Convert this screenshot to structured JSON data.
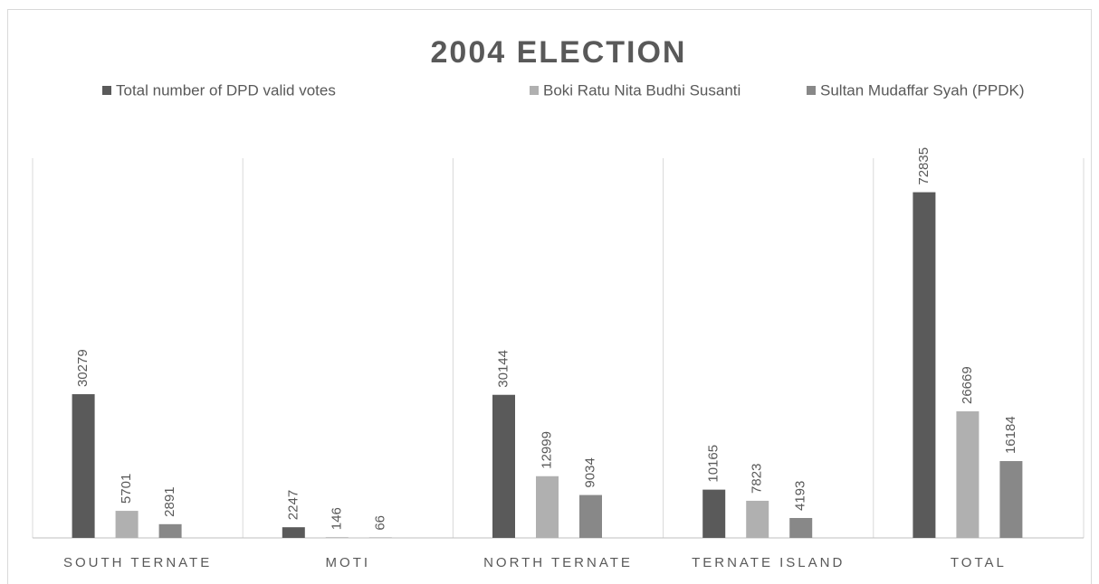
{
  "chart_data": {
    "type": "bar",
    "title": "2004 ELECTION",
    "categories": [
      "SOUTH TERNATE",
      "MOTI",
      "NORTH TERNATE",
      "TERNATE ISLAND",
      "TOTAL"
    ],
    "series": [
      {
        "name": "Total number of DPD valid votes",
        "color": "#5a5a5a",
        "values": [
          30279,
          2247,
          30144,
          10165,
          72835
        ]
      },
      {
        "name": "Boki Ratu Nita Budhi Susanti",
        "color": "#b0b0b0",
        "values": [
          5701,
          146,
          12999,
          7823,
          26669
        ]
      },
      {
        "name": "Sultan Mudaffar Syah (PPDK)",
        "color": "#888888",
        "values": [
          2891,
          66,
          9034,
          4193,
          16184
        ]
      }
    ],
    "ylim": [
      0,
      80000
    ],
    "legend": "top"
  }
}
